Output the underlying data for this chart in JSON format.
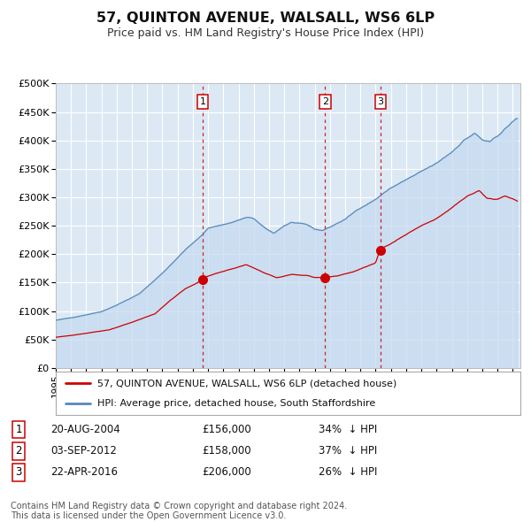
{
  "title": "57, QUINTON AVENUE, WALSALL, WS6 6LP",
  "subtitle": "Price paid vs. HM Land Registry's House Price Index (HPI)",
  "legend_label_red": "57, QUINTON AVENUE, WALSALL, WS6 6LP (detached house)",
  "legend_label_blue": "HPI: Average price, detached house, South Staffordshire",
  "footer1": "Contains HM Land Registry data © Crown copyright and database right 2024.",
  "footer2": "This data is licensed under the Open Government Licence v3.0.",
  "events": [
    {
      "num": 1,
      "date": "20-AUG-2004",
      "price": "£156,000",
      "pct": "34%",
      "x_year": 2004.64,
      "y_val": 156000
    },
    {
      "num": 2,
      "date": "03-SEP-2012",
      "price": "£158,000",
      "pct": "37%",
      "x_year": 2012.68,
      "y_val": 158000
    },
    {
      "num": 3,
      "date": "22-APR-2016",
      "price": "£206,000",
      "pct": "26%",
      "x_year": 2016.31,
      "y_val": 206000
    }
  ],
  "ylim": [
    0,
    500000
  ],
  "xlim_start": 1995.0,
  "xlim_end": 2025.5,
  "background_color": "#dce9f5",
  "grid_color": "#ffffff",
  "red_color": "#cc0000",
  "blue_color": "#5588bb",
  "title_fontsize": 11.5,
  "subtitle_fontsize": 9.5,
  "tick_fontsize": 7.5,
  "legend_fontsize": 8,
  "footer_fontsize": 7
}
